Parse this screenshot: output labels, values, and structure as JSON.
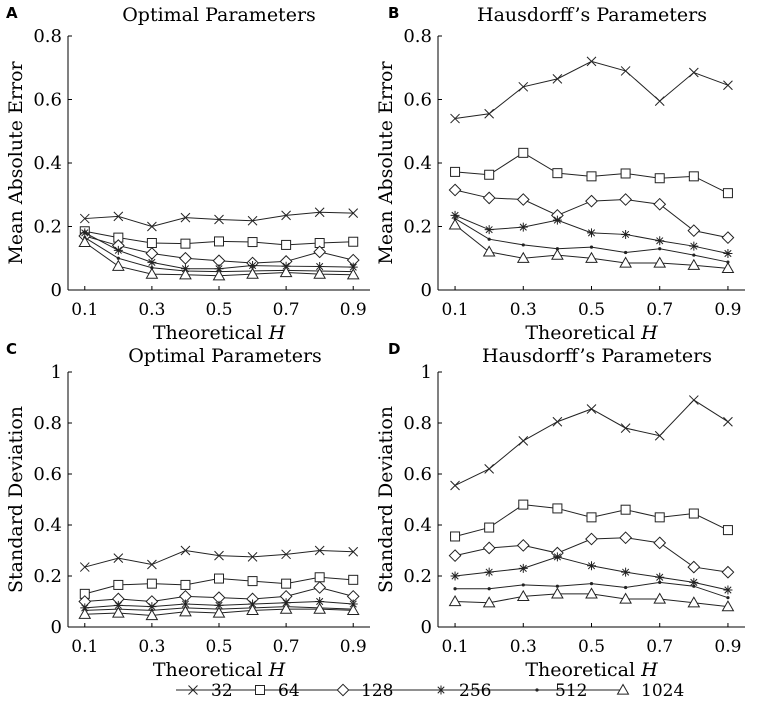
{
  "chart_data": [
    {
      "panel": "A",
      "type": "line",
      "title": "Optimal Parameters",
      "xlabel": "Theoretical",
      "xlabel_var": "H",
      "ylabel": "Mean Absolute Error",
      "xlim": [
        0.05,
        0.95
      ],
      "ylim": [
        0,
        0.8
      ],
      "xticks": [
        0.1,
        0.3,
        0.5,
        0.7,
        0.9
      ],
      "xtick_labels": [
        "0.1",
        "0.3",
        "0.5",
        "0.7",
        "0.9"
      ],
      "yticks": [
        0,
        0.2,
        0.4,
        0.6,
        0.8
      ],
      "ytick_labels": [
        "0",
        "0.2",
        "0.4",
        "0.6",
        "0.8"
      ],
      "x": [
        0.1,
        0.2,
        0.3,
        0.4,
        0.5,
        0.6,
        0.7,
        0.8,
        0.9
      ],
      "series": [
        {
          "name": "32",
          "values": [
            0.225,
            0.232,
            0.2,
            0.228,
            0.222,
            0.218,
            0.235,
            0.245,
            0.242
          ]
        },
        {
          "name": "64",
          "values": [
            0.185,
            0.165,
            0.148,
            0.146,
            0.153,
            0.151,
            0.142,
            0.148,
            0.152
          ]
        },
        {
          "name": "128",
          "values": [
            0.17,
            0.14,
            0.115,
            0.1,
            0.092,
            0.085,
            0.09,
            0.12,
            0.094
          ]
        },
        {
          "name": "256",
          "values": [
            0.18,
            0.125,
            0.087,
            0.067,
            0.067,
            0.077,
            0.075,
            0.074,
            0.072
          ]
        },
        {
          "name": "512",
          "values": [
            0.165,
            0.1,
            0.07,
            0.06,
            0.058,
            0.06,
            0.062,
            0.06,
            0.058
          ]
        },
        {
          "name": "1024",
          "values": [
            0.15,
            0.075,
            0.05,
            0.048,
            0.045,
            0.05,
            0.055,
            0.05,
            0.048
          ]
        }
      ]
    },
    {
      "panel": "B",
      "type": "line",
      "title": "Hausdorff’s Parameters",
      "xlabel": "Theoretical",
      "xlabel_var": "H",
      "ylabel": "Mean Absolute Error",
      "xlim": [
        0.05,
        0.95
      ],
      "ylim": [
        0,
        0.8
      ],
      "xticks": [
        0.1,
        0.3,
        0.5,
        0.7,
        0.9
      ],
      "xtick_labels": [
        "0.1",
        "0.3",
        "0.5",
        "0.7",
        "0.9"
      ],
      "yticks": [
        0,
        0.2,
        0.4,
        0.6,
        0.8
      ],
      "ytick_labels": [
        "0",
        "0.2",
        "0.4",
        "0.6",
        "0.8"
      ],
      "x": [
        0.1,
        0.2,
        0.3,
        0.4,
        0.5,
        0.6,
        0.7,
        0.8,
        0.9
      ],
      "series": [
        {
          "name": "32",
          "values": [
            0.54,
            0.555,
            0.64,
            0.665,
            0.72,
            0.69,
            0.595,
            0.685,
            0.645
          ]
        },
        {
          "name": "64",
          "values": [
            0.372,
            0.363,
            0.432,
            0.368,
            0.358,
            0.367,
            0.352,
            0.358,
            0.305
          ]
        },
        {
          "name": "128",
          "values": [
            0.315,
            0.29,
            0.285,
            0.235,
            0.28,
            0.285,
            0.27,
            0.187,
            0.165
          ]
        },
        {
          "name": "256",
          "values": [
            0.235,
            0.19,
            0.198,
            0.22,
            0.18,
            0.175,
            0.155,
            0.138,
            0.115
          ]
        },
        {
          "name": "512",
          "values": [
            0.225,
            0.16,
            0.142,
            0.13,
            0.135,
            0.118,
            0.13,
            0.11,
            0.088
          ]
        },
        {
          "name": "1024",
          "values": [
            0.205,
            0.12,
            0.1,
            0.11,
            0.1,
            0.085,
            0.085,
            0.078,
            0.068
          ]
        }
      ]
    },
    {
      "panel": "C",
      "type": "line",
      "title": "Optimal Parameters",
      "xlabel": "Theoretical",
      "xlabel_var": "H",
      "ylabel": "Standard Deviation",
      "xlim": [
        0.05,
        0.95
      ],
      "ylim": [
        0,
        1
      ],
      "xticks": [
        0.1,
        0.3,
        0.5,
        0.7,
        0.9
      ],
      "xtick_labels": [
        "0.1",
        "0.3",
        "0.5",
        "0.7",
        "0.9"
      ],
      "yticks": [
        0,
        0.2,
        0.4,
        0.6,
        0.8,
        1
      ],
      "ytick_labels": [
        "0",
        "0.2",
        "0.4",
        "0.6",
        "0.8",
        "1"
      ],
      "x": [
        0.1,
        0.2,
        0.3,
        0.4,
        0.5,
        0.6,
        0.7,
        0.8,
        0.9
      ],
      "series": [
        {
          "name": "32",
          "values": [
            0.235,
            0.27,
            0.245,
            0.3,
            0.28,
            0.275,
            0.285,
            0.3,
            0.295
          ]
        },
        {
          "name": "64",
          "values": [
            0.13,
            0.165,
            0.17,
            0.165,
            0.19,
            0.18,
            0.17,
            0.195,
            0.185
          ]
        },
        {
          "name": "128",
          "values": [
            0.1,
            0.11,
            0.1,
            0.12,
            0.115,
            0.11,
            0.12,
            0.155,
            0.12
          ]
        },
        {
          "name": "256",
          "values": [
            0.075,
            0.085,
            0.08,
            0.09,
            0.085,
            0.09,
            0.095,
            0.1,
            0.09
          ]
        },
        {
          "name": "512",
          "values": [
            0.065,
            0.07,
            0.065,
            0.075,
            0.07,
            0.075,
            0.08,
            0.075,
            0.07
          ]
        },
        {
          "name": "1024",
          "values": [
            0.05,
            0.055,
            0.045,
            0.06,
            0.055,
            0.065,
            0.07,
            0.07,
            0.065
          ]
        }
      ]
    },
    {
      "panel": "D",
      "type": "line",
      "title": "Hausdorff’s Parameters",
      "xlabel": "Theoretical",
      "xlabel_var": "H",
      "ylabel": "Standard Deviation",
      "xlim": [
        0.05,
        0.95
      ],
      "ylim": [
        0,
        1
      ],
      "xticks": [
        0.1,
        0.3,
        0.5,
        0.7,
        0.9
      ],
      "xtick_labels": [
        "0.1",
        "0.3",
        "0.5",
        "0.7",
        "0.9"
      ],
      "yticks": [
        0,
        0.2,
        0.4,
        0.6,
        0.8,
        1
      ],
      "ytick_labels": [
        "0",
        "0.2",
        "0.4",
        "0.6",
        "0.8",
        "1"
      ],
      "x": [
        0.1,
        0.2,
        0.3,
        0.4,
        0.5,
        0.6,
        0.7,
        0.8,
        0.9
      ],
      "series": [
        {
          "name": "32",
          "values": [
            0.555,
            0.62,
            0.73,
            0.805,
            0.855,
            0.78,
            0.75,
            0.89,
            0.805
          ]
        },
        {
          "name": "64",
          "values": [
            0.355,
            0.39,
            0.48,
            0.465,
            0.43,
            0.46,
            0.43,
            0.445,
            0.38
          ]
        },
        {
          "name": "128",
          "values": [
            0.28,
            0.31,
            0.32,
            0.29,
            0.345,
            0.35,
            0.33,
            0.235,
            0.215
          ]
        },
        {
          "name": "256",
          "values": [
            0.2,
            0.215,
            0.23,
            0.275,
            0.24,
            0.215,
            0.195,
            0.175,
            0.145
          ]
        },
        {
          "name": "512",
          "values": [
            0.15,
            0.15,
            0.165,
            0.16,
            0.17,
            0.155,
            0.175,
            0.16,
            0.115
          ]
        },
        {
          "name": "1024",
          "values": [
            0.1,
            0.095,
            0.12,
            0.13,
            0.13,
            0.11,
            0.11,
            0.095,
            0.08
          ]
        }
      ]
    }
  ],
  "legend": {
    "entries": [
      {
        "label": "32",
        "marker": "cross"
      },
      {
        "label": "64",
        "marker": "square"
      },
      {
        "label": "128",
        "marker": "diamond"
      },
      {
        "label": "256",
        "marker": "asterisk"
      },
      {
        "label": "512",
        "marker": "dot"
      },
      {
        "label": "1024",
        "marker": "triangle"
      }
    ]
  },
  "markers": [
    "cross",
    "square",
    "diamond",
    "asterisk",
    "dot",
    "triangle"
  ],
  "colors": {
    "line": "#222222",
    "axis": "#000000",
    "background": "#ffffff"
  }
}
